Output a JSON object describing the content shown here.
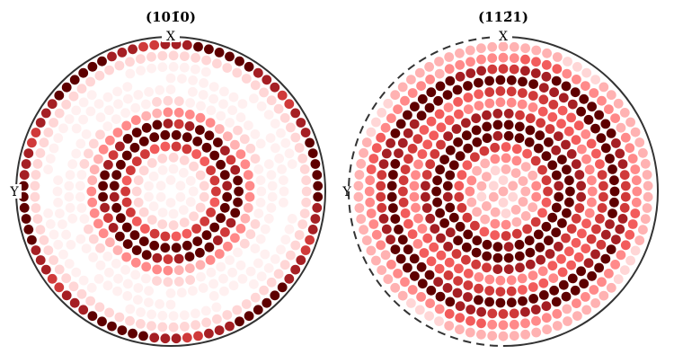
{
  "figure": {
    "colors": {
      "rim_solid": "#333333",
      "rim_dashed": "#333333",
      "scale": [
        "#fff0f0",
        "#ffd6d6",
        "#ffb2b2",
        "#ff8a8a",
        "#f25c5c",
        "#d03a3a",
        "#a51f24",
        "#5e0000"
      ]
    },
    "plots": [
      {
        "title": "(101̄0)",
        "x_label": "X",
        "y_label": "Y",
        "rim_style": "solid"
      },
      {
        "title": "(112̄1)",
        "x_label": "X",
        "y_label": "Y",
        "rim_style": "dashed (left half)"
      }
    ]
  }
}
